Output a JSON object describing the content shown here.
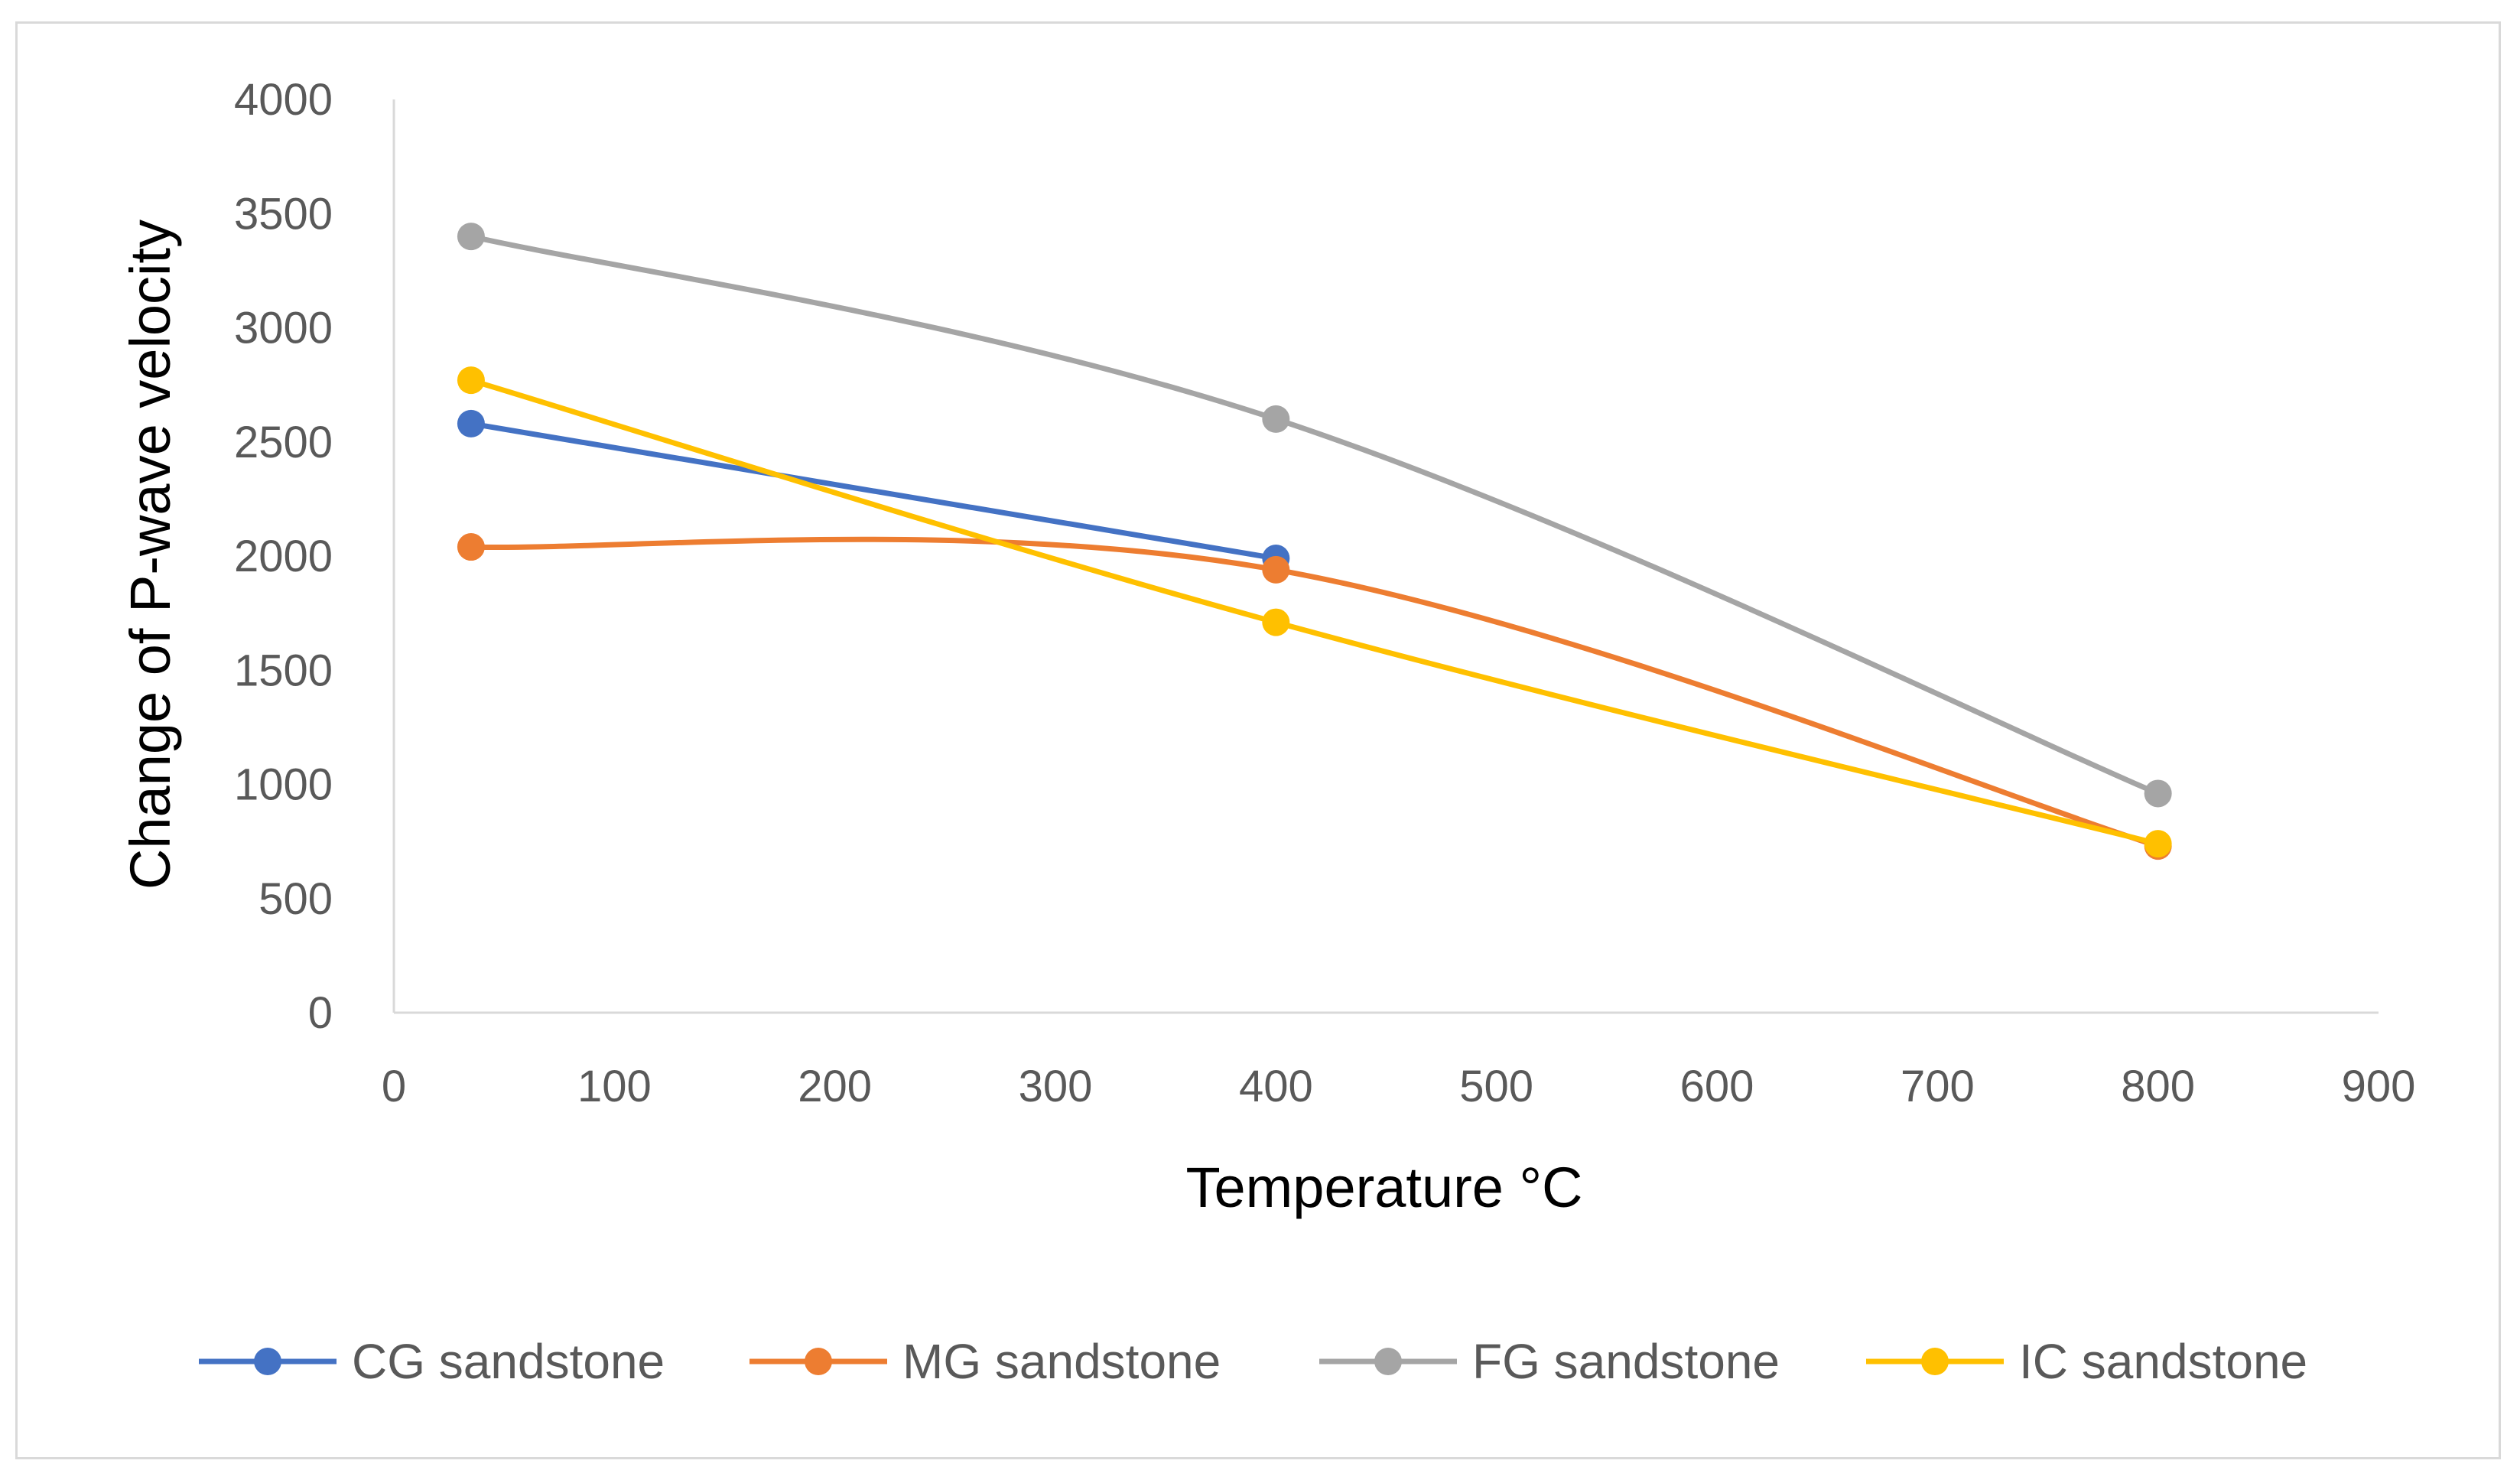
{
  "chart_data": {
    "type": "line",
    "title": "",
    "xlabel": "Temperature °C",
    "ylabel": "Change of P-wave velocity",
    "xlim": [
      0,
      900
    ],
    "ylim": [
      0,
      4000
    ],
    "xticks": [
      0,
      100,
      200,
      300,
      400,
      500,
      600,
      700,
      800,
      900
    ],
    "yticks": [
      0,
      500,
      1000,
      1500,
      2000,
      2500,
      3000,
      3500,
      4000
    ],
    "xtick_labels": [
      "0",
      "100",
      "200",
      "300",
      "400",
      "500",
      "600",
      "700",
      "800",
      "900"
    ],
    "ytick_labels": [
      "0",
      "500",
      "1000",
      "1500",
      "2000",
      "2500",
      "3000",
      "3500",
      "4000"
    ],
    "grid": false,
    "legend_position": "bottom",
    "series": [
      {
        "name": "CG sandstone",
        "color": "#4472c4",
        "x": [
          35,
          400
        ],
        "y": [
          2580,
          1990
        ]
      },
      {
        "name": "MG sandstone",
        "color": "#ed7d31",
        "x": [
          35,
          400,
          800
        ],
        "y": [
          2040,
          1940,
          730
        ]
      },
      {
        "name": "FG sandstone",
        "color": "#a5a5a5",
        "x": [
          35,
          400,
          800
        ],
        "y": [
          3400,
          2600,
          960
        ]
      },
      {
        "name": "IC sandstone",
        "color": "#ffc000",
        "x": [
          35,
          400,
          800
        ],
        "y": [
          2770,
          1710,
          740
        ]
      }
    ]
  }
}
